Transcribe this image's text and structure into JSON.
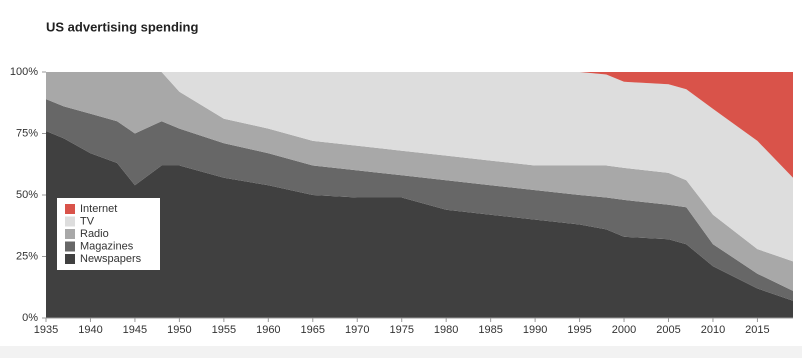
{
  "chart_data": {
    "type": "stacked-area",
    "title": "US advertising spending",
    "x": [
      1935,
      1937,
      1940,
      1943,
      1945,
      1948,
      1950,
      1955,
      1960,
      1965,
      1970,
      1975,
      1980,
      1985,
      1990,
      1995,
      1998,
      2000,
      2005,
      2007,
      2010,
      2015,
      2019
    ],
    "series": [
      {
        "name": "Newspapers",
        "color": "#404040",
        "values": [
          76,
          73,
          67,
          63,
          54,
          62,
          62,
          57,
          54,
          50,
          49,
          49,
          44,
          42,
          40,
          38,
          36,
          33,
          32,
          30,
          21,
          12,
          7
        ]
      },
      {
        "name": "Magazines",
        "color": "#676767",
        "values": [
          13,
          13,
          16,
          17,
          21,
          18,
          15,
          14,
          13,
          12,
          11,
          9,
          12,
          12,
          12,
          12,
          13,
          15,
          14,
          15,
          9,
          6,
          4
        ]
      },
      {
        "name": "Radio",
        "color": "#a8a8a8",
        "values": [
          11,
          14,
          17,
          20,
          25,
          20,
          15,
          10,
          10,
          10,
          10,
          10,
          10,
          10,
          10,
          12,
          13,
          13,
          13,
          11,
          12,
          10,
          12
        ]
      },
      {
        "name": "TV",
        "color": "#dddddd",
        "values": [
          0,
          0,
          0,
          0,
          0,
          0,
          8,
          19,
          23,
          28,
          30,
          32,
          34,
          36,
          38,
          38,
          37,
          35,
          36,
          37,
          43,
          44,
          34
        ]
      },
      {
        "name": "Internet",
        "color": "#d9534a",
        "values": [
          0,
          0,
          0,
          0,
          0,
          0,
          0,
          0,
          0,
          0,
          0,
          0,
          0,
          0,
          0,
          0,
          1,
          4,
          5,
          7,
          15,
          28,
          43
        ]
      }
    ],
    "xlim": [
      1935,
      2019
    ],
    "xticks": [
      1935,
      1940,
      1945,
      1950,
      1955,
      1960,
      1965,
      1970,
      1975,
      1980,
      1985,
      1990,
      1995,
      2000,
      2005,
      2010,
      2015
    ],
    "ylim": [
      0,
      100
    ],
    "yticks": [
      {
        "value": 0,
        "label": "0%"
      },
      {
        "value": 25,
        "label": "25%"
      },
      {
        "value": 50,
        "label": "50%"
      },
      {
        "value": 75,
        "label": "75%"
      },
      {
        "value": 100,
        "label": "100%"
      }
    ],
    "legend": "left"
  }
}
